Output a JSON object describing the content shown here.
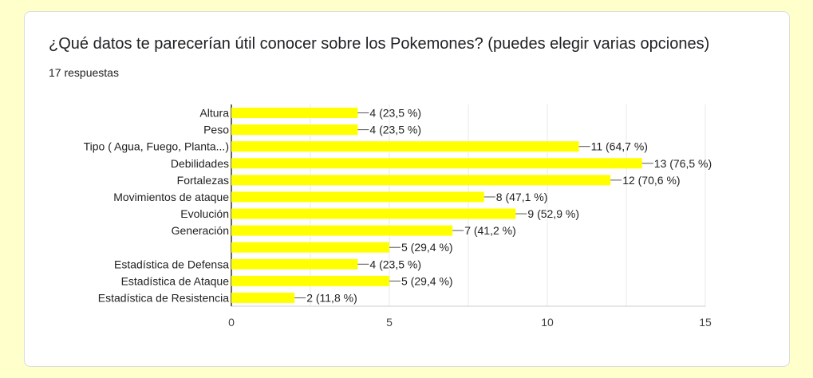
{
  "question": {
    "title": "¿Qué datos te parecerían útil conocer sobre los Pokemones? (puedes elegir varias opciones)",
    "responses": "17 respuestas"
  },
  "colors": {
    "bar": "#ffff00",
    "axis": "#333333",
    "grid": "#e8e8e8",
    "text": "#222222",
    "tick": "#444444"
  },
  "chart_data": {
    "type": "bar",
    "orientation": "horizontal",
    "categories": [
      "Altura",
      "Peso",
      "Tipo ( Agua, Fuego, Planta...)",
      "Debilidades",
      "Fortalezas",
      "Movimientos de ataque",
      "Evolución",
      "Generación",
      "",
      "Estadística de Defensa",
      "Estadística de Ataque",
      "Estadística de Resistencia"
    ],
    "values": [
      4,
      4,
      11,
      13,
      12,
      8,
      9,
      7,
      5,
      4,
      5,
      2
    ],
    "data_labels": [
      "4 (23,5 %)",
      "4 (23,5 %)",
      "11 (64,7 %)",
      "13 (76,5 %)",
      "12 (70,6 %)",
      "8 (47,1 %)",
      "9 (52,9 %)",
      "7 (41,2 %)",
      "5 (29,4 %)",
      "4 (23,5 %)",
      "5 (29,4 %)",
      "2 (11,8 %)"
    ],
    "xlim": [
      0,
      15
    ],
    "xticks": [
      0,
      5,
      10,
      15
    ],
    "xtick_labels": [
      "0",
      "5",
      "10",
      "15"
    ],
    "grid": true
  }
}
